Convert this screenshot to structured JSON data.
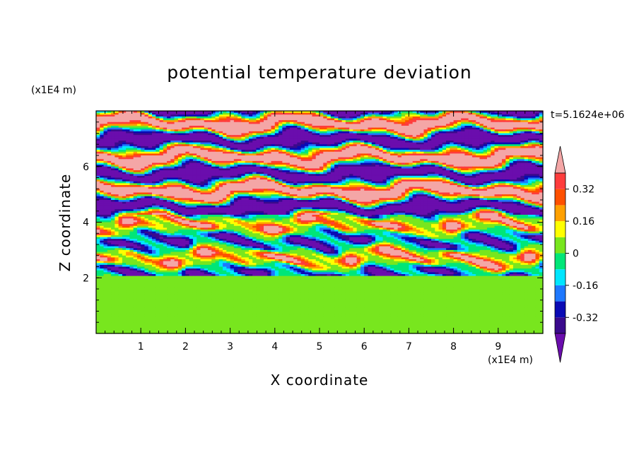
{
  "title": "potential temperature deviation",
  "time_label": "t=5.1624e+06",
  "chart_data": {
    "type": "heatmap",
    "title": "potential temperature deviation",
    "xlabel": "X coordinate",
    "ylabel": "Z coordinate",
    "x_unit": "(x1E4 m)",
    "y_unit": "(x1E4 m)",
    "xlim": [
      0,
      10
    ],
    "ylim": [
      0,
      8
    ],
    "x_ticks": [
      1,
      2,
      3,
      4,
      5,
      6,
      7,
      8,
      9
    ],
    "y_ticks": [
      2,
      4,
      6
    ],
    "colorbar": {
      "levels": [
        -0.4,
        -0.32,
        -0.24,
        -0.16,
        -0.08,
        0,
        0.08,
        0.16,
        0.24,
        0.32,
        0.4
      ],
      "tick_labels": [
        "0.32",
        "0.16",
        "0",
        "-0.16",
        "-0.32"
      ],
      "colors": [
        "#6a0dad",
        "#3a0a8c",
        "#0a0ab4",
        "#1e78ff",
        "#00e6ff",
        "#00e678",
        "#78e61e",
        "#ffff00",
        "#ffa000",
        "#ff5000",
        "#ff3c3c",
        "#f4a6a6"
      ],
      "extend": "both"
    },
    "grid": false
  }
}
